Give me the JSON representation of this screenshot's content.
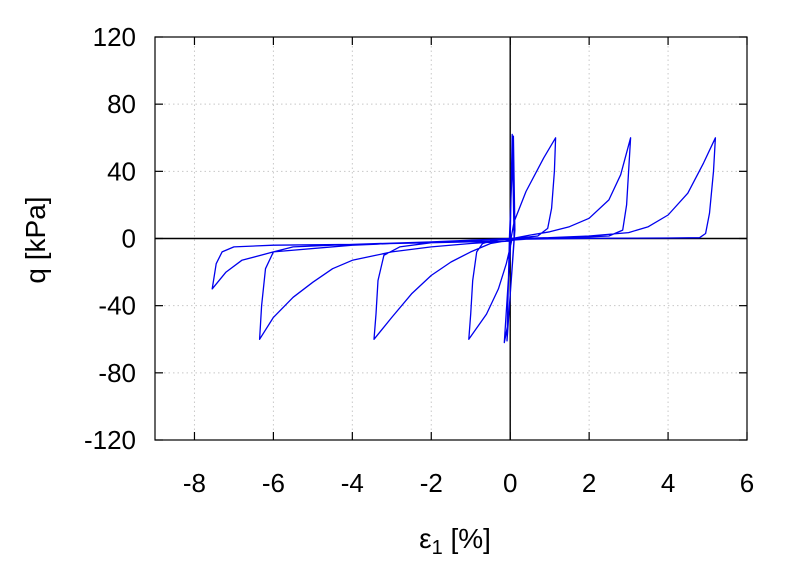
{
  "chart_data": {
    "type": "line",
    "title": "",
    "xlabel": "ε",
    "xlabel_subscript": "1",
    "xlabel_unit": " [%]",
    "ylabel": "q [kPa]",
    "xlim": [
      -9,
      6
    ],
    "ylim": [
      -120,
      120
    ],
    "x_ticks": [
      -8,
      -6,
      -4,
      -2,
      0,
      2,
      4,
      6
    ],
    "y_ticks": [
      -120,
      -80,
      -40,
      0,
      40,
      80,
      120
    ],
    "x_tick_labels": [
      "-8",
      "-6",
      "-4",
      "-2",
      "0",
      "2",
      "4",
      "6"
    ],
    "y_tick_labels": [
      "-120",
      "-80",
      "-40",
      "0",
      "40",
      "80",
      "120"
    ],
    "grid": true,
    "zero_lines": true,
    "legend": "none",
    "colors": {
      "series": "#0000ee",
      "grid": "#c8c8c8",
      "axis": "#000000"
    },
    "series": [
      {
        "values_description": "cyclic stress-strain path, q vs axial strain",
        "points": [
          [
            0.0,
            0.0
          ],
          [
            0.05,
            62.0
          ],
          [
            0.1,
            0.0
          ],
          [
            -0.08,
            -61.0
          ],
          [
            -0.02,
            0.0
          ],
          [
            0.08,
            61.0
          ],
          [
            0.12,
            5.0
          ],
          [
            -0.05,
            -50.0
          ],
          [
            -0.15,
            -62.0
          ],
          [
            0.02,
            0.0
          ],
          [
            0.1,
            10.0
          ],
          [
            0.4,
            28.0
          ],
          [
            0.85,
            48.0
          ],
          [
            1.15,
            60.0
          ],
          [
            1.12,
            40.0
          ],
          [
            1.05,
            18.0
          ],
          [
            0.95,
            6.0
          ],
          [
            0.7,
            1.5
          ],
          [
            0.3,
            0.5
          ],
          [
            0.0,
            0.0
          ],
          [
            -0.4,
            -1.0
          ],
          [
            -0.7,
            -3.0
          ],
          [
            -0.85,
            -8.0
          ],
          [
            -0.95,
            -25.0
          ],
          [
            -1.0,
            -45.0
          ],
          [
            -1.05,
            -60.0
          ],
          [
            -0.9,
            -55.0
          ],
          [
            -0.6,
            -45.0
          ],
          [
            -0.3,
            -30.0
          ],
          [
            -0.1,
            -15.0
          ],
          [
            0.05,
            0.0
          ],
          [
            0.5,
            2.0
          ],
          [
            1.0,
            4.0
          ],
          [
            1.5,
            7.0
          ],
          [
            2.0,
            12.0
          ],
          [
            2.5,
            23.0
          ],
          [
            2.8,
            38.0
          ],
          [
            3.05,
            60.0
          ],
          [
            3.0,
            40.0
          ],
          [
            2.95,
            20.0
          ],
          [
            2.85,
            5.0
          ],
          [
            2.5,
            1.5
          ],
          [
            2.0,
            1.0
          ],
          [
            1.0,
            0.5
          ],
          [
            0.0,
            0.0
          ],
          [
            -1.0,
            -1.5
          ],
          [
            -2.0,
            -2.5
          ],
          [
            -2.8,
            -5.0
          ],
          [
            -3.2,
            -10.0
          ],
          [
            -3.35,
            -25.0
          ],
          [
            -3.4,
            -45.0
          ],
          [
            -3.45,
            -60.0
          ],
          [
            -3.0,
            -47.0
          ],
          [
            -2.5,
            -33.0
          ],
          [
            -2.0,
            -22.0
          ],
          [
            -1.5,
            -14.0
          ],
          [
            -1.0,
            -8.0
          ],
          [
            -0.5,
            -3.0
          ],
          [
            0.0,
            -1.0
          ],
          [
            1.0,
            0.5
          ],
          [
            2.0,
            1.5
          ],
          [
            3.0,
            3.5
          ],
          [
            3.5,
            7.0
          ],
          [
            4.0,
            14.0
          ],
          [
            4.5,
            27.0
          ],
          [
            4.9,
            45.0
          ],
          [
            5.2,
            60.0
          ],
          [
            5.15,
            40.0
          ],
          [
            5.05,
            15.0
          ],
          [
            4.95,
            3.0
          ],
          [
            4.8,
            0.5
          ],
          [
            4.0,
            0.3
          ],
          [
            2.0,
            0.1
          ],
          [
            0.0,
            -0.5
          ],
          [
            -2.0,
            -2.0
          ],
          [
            -4.0,
            -3.5
          ],
          [
            -5.5,
            -5.0
          ],
          [
            -6.0,
            -8.0
          ],
          [
            -6.2,
            -18.0
          ],
          [
            -6.3,
            -40.0
          ],
          [
            -6.35,
            -60.0
          ],
          [
            -6.0,
            -47.0
          ],
          [
            -5.5,
            -35.0
          ],
          [
            -5.0,
            -26.0
          ],
          [
            -4.5,
            -18.0
          ],
          [
            -4.0,
            -13.0
          ],
          [
            -3.0,
            -8.0
          ],
          [
            -2.0,
            -5.0
          ],
          [
            -1.0,
            -3.0
          ],
          [
            0.0,
            -1.5
          ],
          [
            -2.0,
            -2.5
          ],
          [
            -4.0,
            -3.5
          ],
          [
            -6.0,
            -4.0
          ],
          [
            -7.0,
            -5.0
          ],
          [
            -7.3,
            -8.0
          ],
          [
            -7.45,
            -15.0
          ],
          [
            -7.55,
            -30.0
          ],
          [
            -7.2,
            -20.0
          ],
          [
            -6.8,
            -13.0
          ],
          [
            -6.0,
            -8.0
          ],
          [
            -4.0,
            -4.0
          ],
          [
            -2.0,
            -2.0
          ],
          [
            0.0,
            0.0
          ]
        ]
      }
    ]
  }
}
